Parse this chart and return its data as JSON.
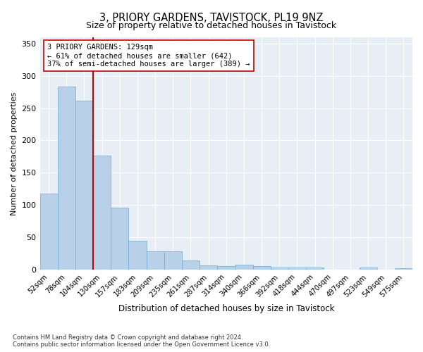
{
  "title": "3, PRIORY GARDENS, TAVISTOCK, PL19 9NZ",
  "subtitle": "Size of property relative to detached houses in Tavistock",
  "xlabel": "Distribution of detached houses by size in Tavistock",
  "ylabel": "Number of detached properties",
  "bar_values_full": [
    118,
    283,
    262,
    177,
    96,
    45,
    29,
    29,
    14,
    7,
    6,
    8,
    6,
    4,
    4,
    4,
    0,
    0,
    3,
    0,
    2
  ],
  "categories": [
    "52sqm",
    "78sqm",
    "104sqm",
    "130sqm",
    "157sqm",
    "183sqm",
    "209sqm",
    "235sqm",
    "261sqm",
    "287sqm",
    "314sqm",
    "340sqm",
    "366sqm",
    "392sqm",
    "418sqm",
    "444sqm",
    "470sqm",
    "497sqm",
    "523sqm",
    "549sqm",
    "575sqm"
  ],
  "property_bin_index": 2,
  "bar_color": "#b8d0e8",
  "bar_edge_color": "#6aaad4",
  "vline_color": "#cc0000",
  "annotation_text": "3 PRIORY GARDENS: 129sqm\n← 61% of detached houses are smaller (642)\n37% of semi-detached houses are larger (389) →",
  "annotation_box_color": "#ffffff",
  "annotation_box_edge_color": "#cc0000",
  "ylim": [
    0,
    360
  ],
  "yticks": [
    0,
    50,
    100,
    150,
    200,
    250,
    300,
    350
  ],
  "footnote": "Contains HM Land Registry data © Crown copyright and database right 2024.\nContains public sector information licensed under the Open Government Licence v3.0.",
  "fig_bg_color": "#ffffff",
  "plot_bg_color": "#e8eef5"
}
